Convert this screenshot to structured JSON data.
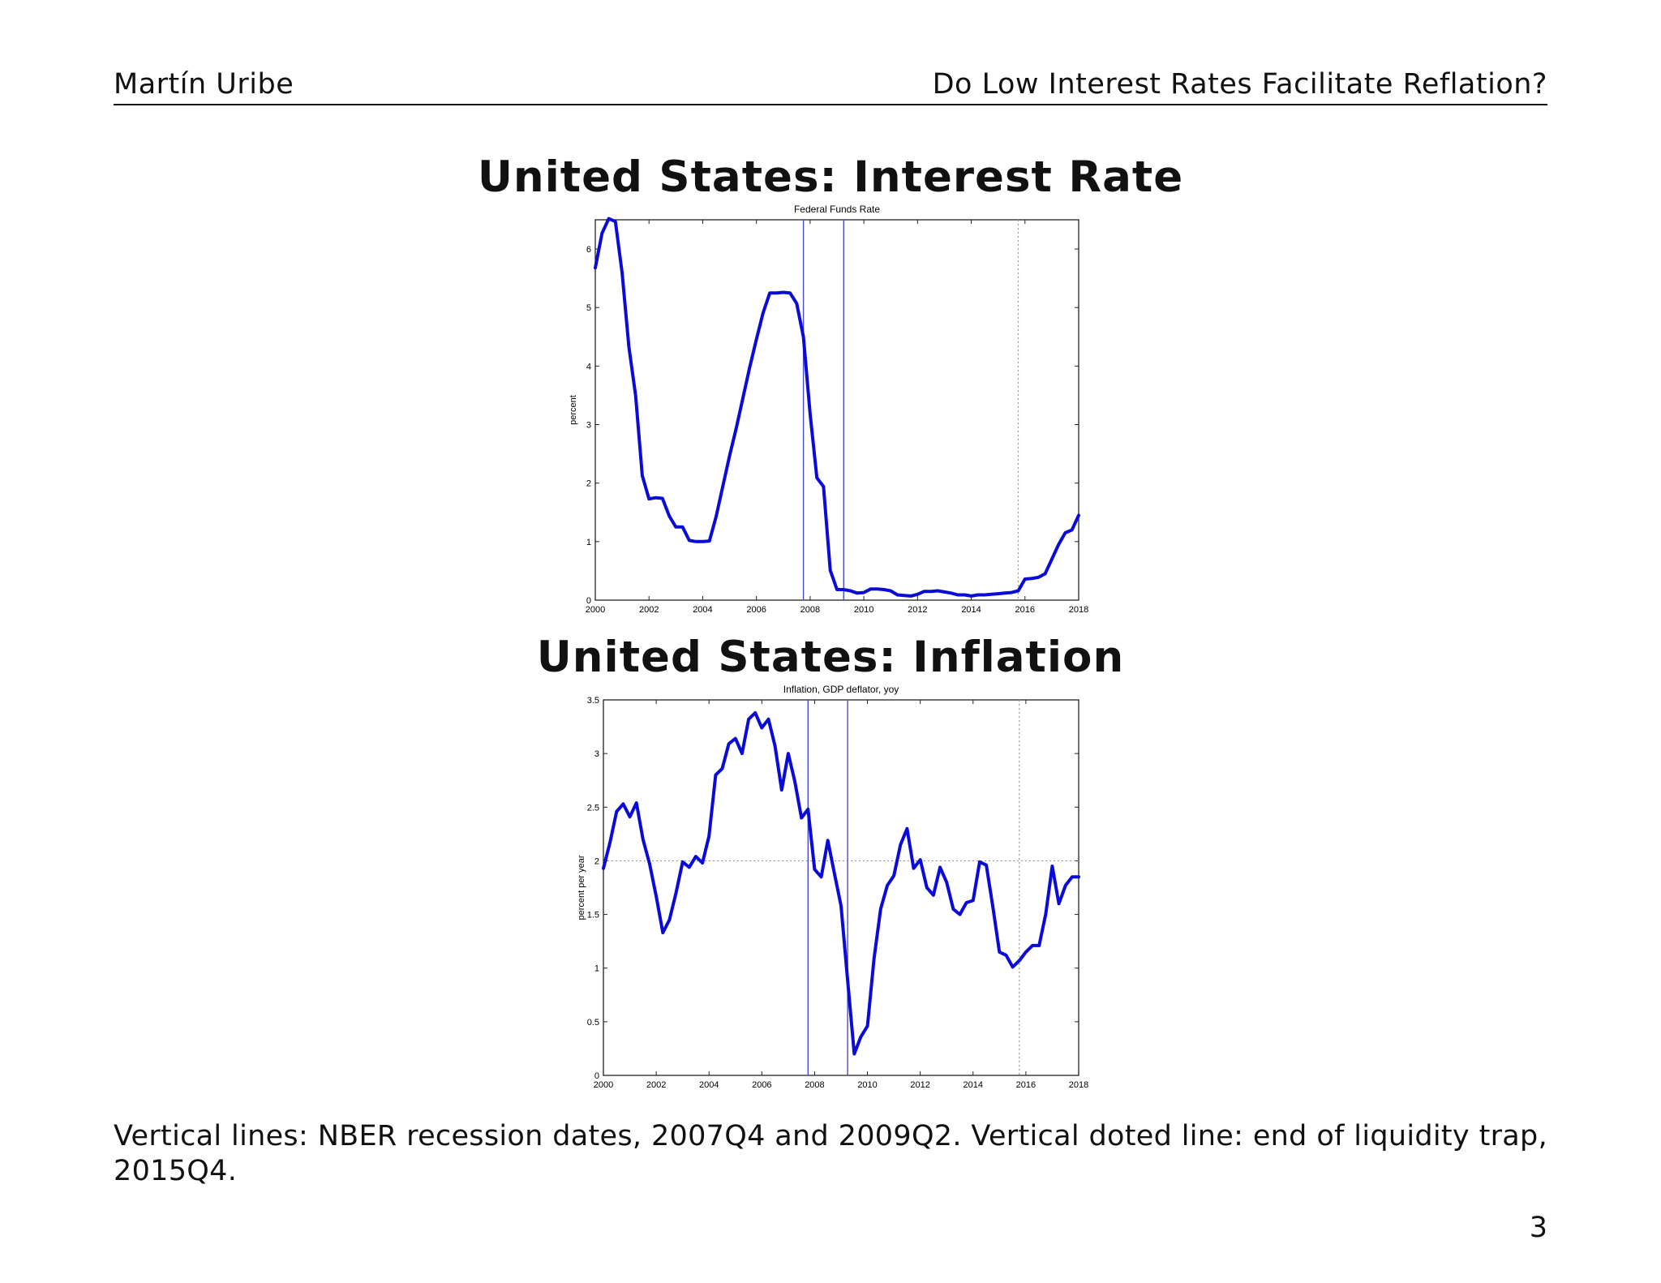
{
  "header": {
    "author": "Martín Uribe",
    "title": "Do Low Interest Rates Facilitate Reflation?"
  },
  "titles": {
    "interest_rate": "United States: Interest Rate",
    "inflation": "United States: Inflation"
  },
  "caption": "Vertical lines: NBER recession dates, 2007Q4 and 2009Q2. Vertical doted line: end of liquidity trap, 2015Q4.",
  "page_number": "3",
  "colors": {
    "series": "#0b0bd9",
    "recession": "#4a4ad0",
    "axes": "#222222",
    "dotted": "#999999"
  },
  "chart_data": [
    {
      "type": "line",
      "title": "Federal Funds Rate",
      "xlabel": "",
      "ylabel": "percent",
      "xlim": [
        2000,
        2018
      ],
      "ylim": [
        0,
        6.5
      ],
      "xticks": [
        2000,
        2002,
        2004,
        2006,
        2008,
        2010,
        2012,
        2014,
        2016,
        2018
      ],
      "yticks": [
        0,
        1,
        2,
        3,
        4,
        5,
        6
      ],
      "vlines_solid": [
        2007.75,
        2009.25
      ],
      "vlines_dotted": [
        2015.75
      ],
      "hlines_dotted": [],
      "series": [
        {
          "name": "Federal Funds Rate",
          "x": [
            2000.0,
            2000.25,
            2000.5,
            2000.75,
            2001.0,
            2001.25,
            2001.5,
            2001.75,
            2002.0,
            2002.25,
            2002.5,
            2002.75,
            2003.0,
            2003.25,
            2003.5,
            2003.75,
            2004.0,
            2004.25,
            2004.5,
            2004.75,
            2005.0,
            2005.25,
            2005.5,
            2005.75,
            2006.0,
            2006.25,
            2006.5,
            2006.75,
            2007.0,
            2007.25,
            2007.5,
            2007.75,
            2008.0,
            2008.25,
            2008.5,
            2008.75,
            2009.0,
            2009.25,
            2009.5,
            2009.75,
            2010.0,
            2010.25,
            2010.5,
            2010.75,
            2011.0,
            2011.25,
            2011.5,
            2011.75,
            2012.0,
            2012.25,
            2012.5,
            2012.75,
            2013.0,
            2013.25,
            2013.5,
            2013.75,
            2014.0,
            2014.25,
            2014.5,
            2014.75,
            2015.0,
            2015.25,
            2015.5,
            2015.75,
            2016.0,
            2016.25,
            2016.5,
            2016.75,
            2017.0,
            2017.25,
            2017.5,
            2017.75,
            2018.0
          ],
          "values": [
            5.68,
            6.27,
            6.52,
            6.47,
            5.59,
            4.33,
            3.5,
            2.13,
            1.73,
            1.75,
            1.74,
            1.44,
            1.25,
            1.25,
            1.02,
            1.0,
            1.0,
            1.01,
            1.43,
            1.95,
            2.47,
            2.94,
            3.46,
            3.98,
            4.46,
            4.91,
            5.25,
            5.25,
            5.26,
            5.25,
            5.07,
            4.5,
            3.18,
            2.09,
            1.94,
            0.51,
            0.18,
            0.18,
            0.16,
            0.12,
            0.13,
            0.19,
            0.19,
            0.18,
            0.16,
            0.09,
            0.08,
            0.07,
            0.1,
            0.15,
            0.15,
            0.16,
            0.14,
            0.12,
            0.09,
            0.09,
            0.07,
            0.09,
            0.09,
            0.1,
            0.11,
            0.12,
            0.13,
            0.16,
            0.36,
            0.37,
            0.39,
            0.45,
            0.7,
            0.95,
            1.15,
            1.2,
            1.45
          ]
        }
      ]
    },
    {
      "type": "line",
      "title": "Inflation, GDP deflator, yoy",
      "xlabel": "",
      "ylabel": "percent per year",
      "xlim": [
        2000,
        2018
      ],
      "ylim": [
        0,
        3.5
      ],
      "xticks": [
        2000,
        2002,
        2004,
        2006,
        2008,
        2010,
        2012,
        2014,
        2016,
        2018
      ],
      "yticks": [
        0,
        0.5,
        1,
        1.5,
        2,
        2.5,
        3,
        3.5
      ],
      "vlines_solid": [
        2007.75,
        2009.25
      ],
      "vlines_dotted": [
        2015.75
      ],
      "hlines_dotted": [
        2
      ],
      "series": [
        {
          "name": "Inflation, GDP deflator, yoy",
          "x": [
            2000.0,
            2000.25,
            2000.5,
            2000.75,
            2001.0,
            2001.25,
            2001.5,
            2001.75,
            2002.0,
            2002.25,
            2002.5,
            2002.75,
            2003.0,
            2003.25,
            2003.5,
            2003.75,
            2004.0,
            2004.25,
            2004.5,
            2004.75,
            2005.0,
            2005.25,
            2005.5,
            2005.75,
            2006.0,
            2006.25,
            2006.5,
            2006.75,
            2007.0,
            2007.25,
            2007.5,
            2007.75,
            2008.0,
            2008.25,
            2008.5,
            2008.75,
            2009.0,
            2009.25,
            2009.5,
            2009.75,
            2010.0,
            2010.25,
            2010.5,
            2010.75,
            2011.0,
            2011.25,
            2011.5,
            2011.75,
            2012.0,
            2012.25,
            2012.5,
            2012.75,
            2013.0,
            2013.25,
            2013.5,
            2013.75,
            2014.0,
            2014.25,
            2014.5,
            2014.75,
            2015.0,
            2015.25,
            2015.5,
            2015.75,
            2016.0,
            2016.25,
            2016.5,
            2016.75,
            2017.0,
            2017.25,
            2017.5,
            2017.75,
            2018.0
          ],
          "values": [
            1.93,
            2.17,
            2.46,
            2.53,
            2.41,
            2.54,
            2.2,
            1.97,
            1.67,
            1.33,
            1.45,
            1.7,
            1.99,
            1.94,
            2.04,
            1.98,
            2.23,
            2.8,
            2.86,
            3.09,
            3.14,
            3.0,
            3.32,
            3.38,
            3.24,
            3.32,
            3.07,
            2.66,
            3.0,
            2.74,
            2.4,
            2.48,
            1.92,
            1.85,
            2.19,
            1.88,
            1.58,
            0.89,
            0.2,
            0.36,
            0.46,
            1.09,
            1.55,
            1.77,
            1.86,
            2.15,
            2.3,
            1.93,
            2.01,
            1.75,
            1.68,
            1.94,
            1.8,
            1.55,
            1.5,
            1.61,
            1.63,
            1.99,
            1.96,
            1.57,
            1.15,
            1.12,
            1.01,
            1.07,
            1.15,
            1.21,
            1.21,
            1.5,
            1.95,
            1.6,
            1.77,
            1.85,
            1.85
          ]
        }
      ]
    }
  ]
}
